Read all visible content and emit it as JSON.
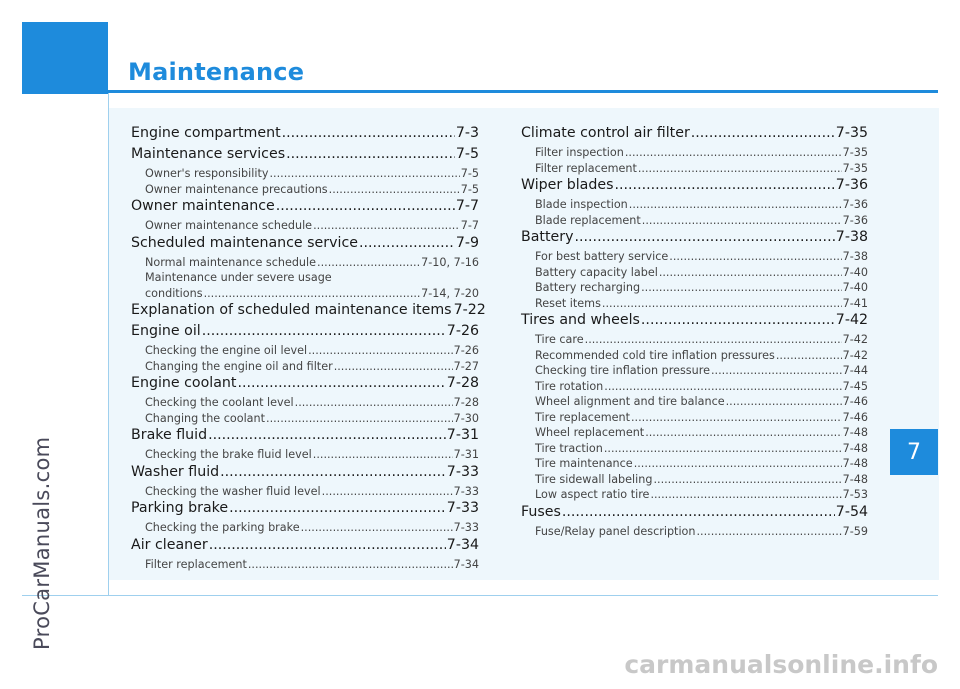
{
  "colors": {
    "accent": "#1e8bdc"
  },
  "title": "Maintenance",
  "chapter_tab": "7",
  "watermark_side": "ProCarManuals.com",
  "watermark_bottom": "carmanualsonline.info",
  "toc_left": [
    {
      "level": 1,
      "label": "Engine compartment",
      "page": "7-3"
    },
    {
      "level": 1,
      "label": "Maintenance services",
      "page": "7-5"
    },
    {
      "level": 2,
      "label": "Owner's responsibility",
      "page": "7-5"
    },
    {
      "level": 2,
      "label": "Owner maintenance precautions",
      "page": "7-5"
    },
    {
      "level": 1,
      "label": "Owner maintenance",
      "page": "7-7"
    },
    {
      "level": 2,
      "label": "Owner maintenance schedule",
      "page": "7-7"
    },
    {
      "level": 1,
      "label": "Scheduled maintenance service",
      "page": "7-9"
    },
    {
      "level": 2,
      "label": "Normal maintenance schedule",
      "page": "7-10, 7-16"
    },
    {
      "level": 2,
      "label": "Maintenance under severe usage",
      "page": ""
    },
    {
      "level": 2,
      "label": "conditions",
      "page": "7-14, 7-20"
    },
    {
      "level": 1,
      "label": "Explanation of scheduled maintenance items",
      "page": "7-22"
    },
    {
      "level": 1,
      "label": "Engine oil",
      "page": "7-26"
    },
    {
      "level": 2,
      "label": "Checking the engine oil level",
      "page": "7-26"
    },
    {
      "level": 2,
      "label": "Changing the engine oil and filter",
      "page": "7-27"
    },
    {
      "level": 1,
      "label": "Engine coolant",
      "page": "7-28"
    },
    {
      "level": 2,
      "label": "Checking the coolant level",
      "page": "7-28"
    },
    {
      "level": 2,
      "label": "Changing the coolant",
      "page": "7-30"
    },
    {
      "level": 1,
      "label": "Brake fluid",
      "page": "7-31"
    },
    {
      "level": 2,
      "label": "Checking the brake fluid level",
      "page": "7-31"
    },
    {
      "level": 1,
      "label": "Washer fluid",
      "page": "7-33"
    },
    {
      "level": 2,
      "label": "Checking the washer fluid level",
      "page": "7-33"
    },
    {
      "level": 1,
      "label": "Parking brake",
      "page": "7-33"
    },
    {
      "level": 2,
      "label": "Checking the parking brake",
      "page": "7-33"
    },
    {
      "level": 1,
      "label": "Air cleaner",
      "page": "7-34"
    },
    {
      "level": 2,
      "label": "Filter replacement",
      "page": "7-34"
    }
  ],
  "toc_right": [
    {
      "level": 1,
      "label": "Climate control air filter",
      "page": "7-35"
    },
    {
      "level": 2,
      "label": "Filter inspection",
      "page": "7-35"
    },
    {
      "level": 2,
      "label": "Filter replacement",
      "page": "7-35"
    },
    {
      "level": 1,
      "label": "Wiper blades",
      "page": "7-36"
    },
    {
      "level": 2,
      "label": "Blade inspection",
      "page": "7-36"
    },
    {
      "level": 2,
      "label": "Blade replacement",
      "page": "7-36"
    },
    {
      "level": 1,
      "label": "Battery",
      "page": "7-38"
    },
    {
      "level": 2,
      "label": "For best battery service",
      "page": "7-38"
    },
    {
      "level": 2,
      "label": "Battery capacity label",
      "page": "7-40"
    },
    {
      "level": 2,
      "label": "Battery recharging",
      "page": "7-40"
    },
    {
      "level": 2,
      "label": "Reset items",
      "page": "7-41"
    },
    {
      "level": 1,
      "label": "Tires and wheels",
      "page": "7-42"
    },
    {
      "level": 2,
      "label": "Tire care",
      "page": "7-42"
    },
    {
      "level": 2,
      "label": "Recommended cold tire inflation pressures",
      "page": "7-42"
    },
    {
      "level": 2,
      "label": "Checking tire inflation pressure",
      "page": "7-44"
    },
    {
      "level": 2,
      "label": "Tire rotation",
      "page": "7-45"
    },
    {
      "level": 2,
      "label": "Wheel alignment and tire balance",
      "page": "7-46"
    },
    {
      "level": 2,
      "label": "Tire replacement",
      "page": "7-46"
    },
    {
      "level": 2,
      "label": "Wheel replacement",
      "page": "7-48"
    },
    {
      "level": 2,
      "label": "Tire traction",
      "page": "7-48"
    },
    {
      "level": 2,
      "label": "Tire maintenance",
      "page": "7-48"
    },
    {
      "level": 2,
      "label": "Tire sidewall labeling",
      "page": "7-48"
    },
    {
      "level": 2,
      "label": "Low aspect ratio tire",
      "page": "7-53"
    },
    {
      "level": 1,
      "label": "Fuses",
      "page": "7-54"
    },
    {
      "level": 2,
      "label": "Fuse/Relay panel description",
      "page": "7-59"
    }
  ]
}
